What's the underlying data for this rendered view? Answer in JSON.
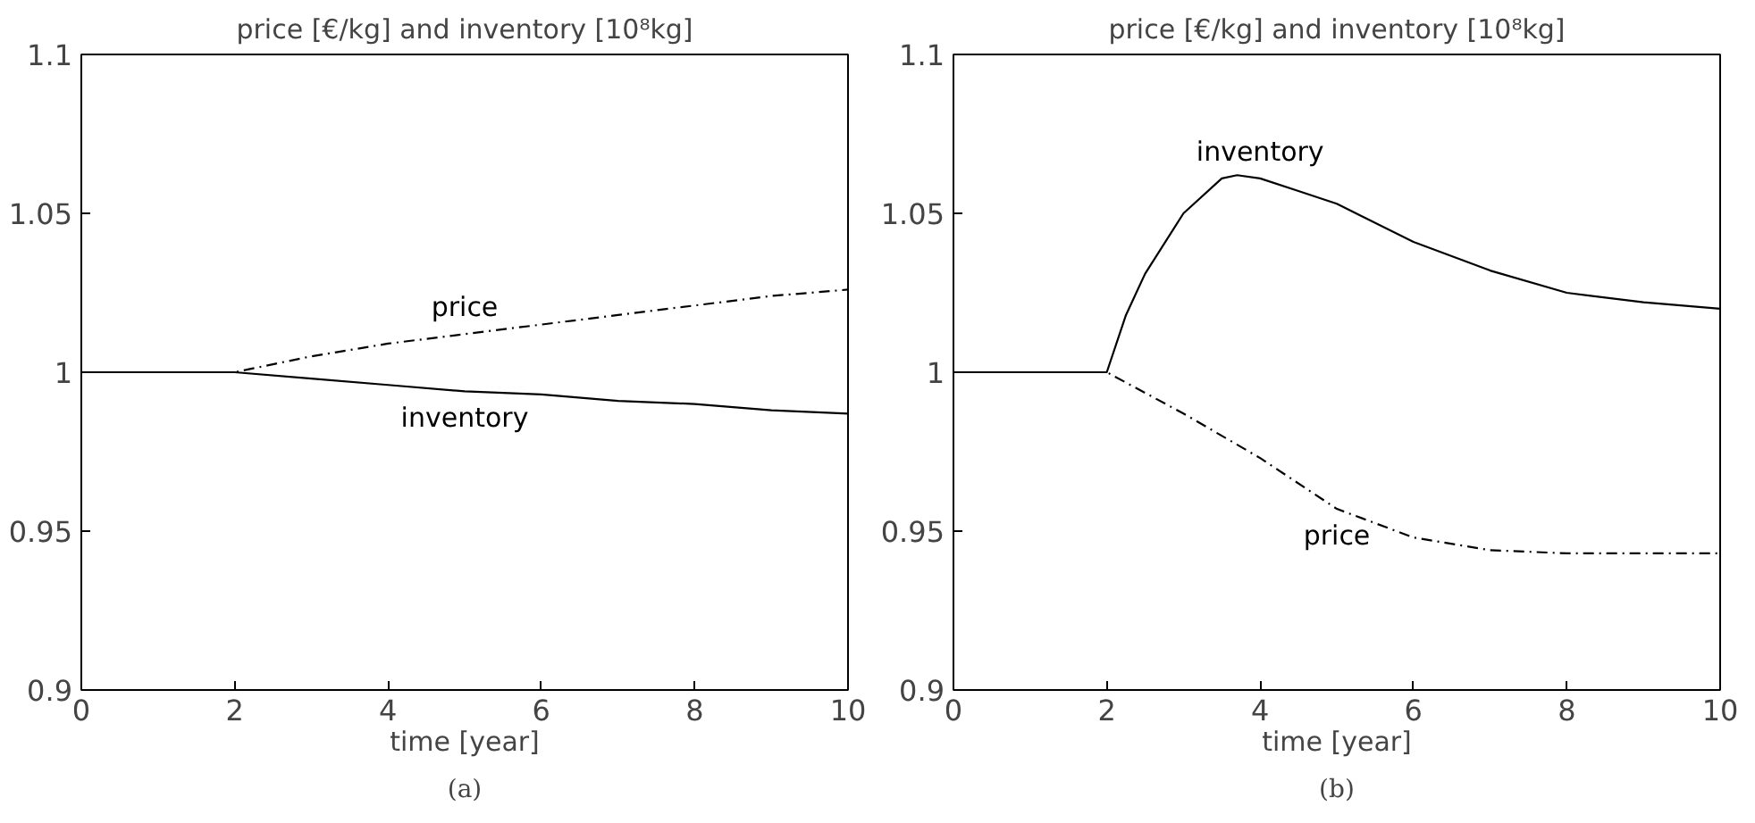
{
  "chart_data": [
    {
      "type": "line",
      "title": "price [€/kg] and inventory [10⁸kg]",
      "xlabel": "time [year]",
      "xlim": [
        0,
        10
      ],
      "ylim": [
        0.9,
        1.1
      ],
      "xticks": [
        0,
        2,
        4,
        6,
        8,
        10
      ],
      "yticks": [
        0.9,
        0.95,
        1,
        1.05,
        1.1
      ],
      "grid": false,
      "legend": false,
      "series": [
        {
          "name": "price",
          "color": "#000000",
          "line_style": "dashed",
          "x": [
            0,
            1,
            2,
            3,
            4,
            5,
            6,
            7,
            8,
            9,
            10
          ],
          "values": [
            1,
            1,
            1,
            1.005,
            1.009,
            1.012,
            1.015,
            1.018,
            1.021,
            1.024,
            1.026
          ]
        },
        {
          "name": "inventory",
          "color": "#000000",
          "line_style": "solid",
          "x": [
            0,
            1,
            2,
            3,
            4,
            5,
            6,
            7,
            8,
            9,
            10
          ],
          "values": [
            1,
            1,
            1,
            0.998,
            0.996,
            0.994,
            0.993,
            0.991,
            0.99,
            0.988,
            0.987
          ]
        }
      ],
      "annotations": [
        "(a)"
      ]
    },
    {
      "type": "line",
      "title": "price [€/kg] and inventory [10⁸kg]",
      "xlabel": "time [year]",
      "xlim": [
        0,
        10
      ],
      "ylim": [
        0.9,
        1.1
      ],
      "xticks": [
        0,
        2,
        4,
        6,
        8,
        10
      ],
      "yticks": [
        0.9,
        0.95,
        1,
        1.05,
        1.1
      ],
      "grid": false,
      "legend": false,
      "series": [
        {
          "name": "inventory",
          "color": "#000000",
          "line_style": "solid",
          "x": [
            0,
            1,
            2,
            2.25,
            2.5,
            3,
            3.5,
            3.7,
            4,
            4.5,
            5,
            6,
            7,
            8,
            9,
            10
          ],
          "values": [
            1,
            1,
            1,
            1.018,
            1.031,
            1.05,
            1.061,
            1.062,
            1.061,
            1.057,
            1.053,
            1.041,
            1.032,
            1.025,
            1.022,
            1.02
          ]
        },
        {
          "name": "price",
          "color": "#000000",
          "line_style": "dashed",
          "x": [
            0,
            1,
            2,
            3,
            4,
            5,
            6,
            7,
            8,
            9,
            10
          ],
          "values": [
            1,
            1,
            1,
            0.987,
            0.973,
            0.957,
            0.948,
            0.944,
            0.943,
            0.943,
            0.943
          ]
        }
      ],
      "annotations": [
        "(b)"
      ]
    }
  ]
}
